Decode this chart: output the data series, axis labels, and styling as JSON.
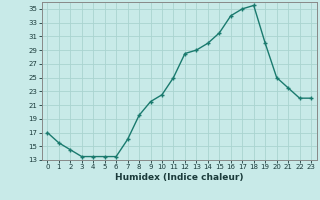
{
  "x": [
    0,
    1,
    2,
    3,
    4,
    5,
    6,
    7,
    8,
    9,
    10,
    11,
    12,
    13,
    14,
    15,
    16,
    17,
    18,
    19,
    20,
    21,
    22,
    23
  ],
  "y": [
    17,
    15.5,
    14.5,
    13.5,
    13.5,
    13.5,
    13.5,
    16,
    19.5,
    21.5,
    22.5,
    25,
    28.5,
    29,
    30,
    31.5,
    34,
    35,
    35.5,
    30,
    25,
    23.5,
    22,
    22
  ],
  "xlabel": "Humidex (Indice chaleur)",
  "line_color": "#1a7a6e",
  "marker": "+",
  "bg_color": "#c8eae8",
  "grid_color": "#aad4d0",
  "ylim": [
    13,
    36
  ],
  "xlim": [
    -0.5,
    23.5
  ],
  "yticks": [
    13,
    15,
    17,
    19,
    21,
    23,
    25,
    27,
    29,
    31,
    33,
    35
  ],
  "xticks": [
    0,
    1,
    2,
    3,
    4,
    5,
    6,
    7,
    8,
    9,
    10,
    11,
    12,
    13,
    14,
    15,
    16,
    17,
    18,
    19,
    20,
    21,
    22,
    23
  ]
}
